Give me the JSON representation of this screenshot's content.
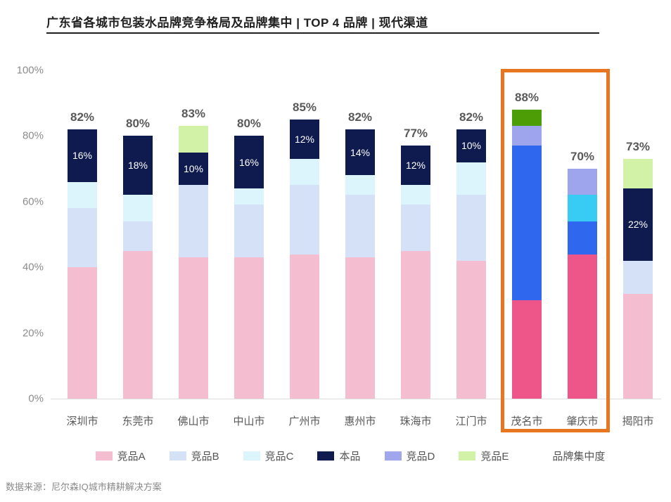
{
  "title": "广东省各城市包装水品牌竞争格局及品牌集中 | TOP 4 品牌 | 现代渠道",
  "source": "数据来源：尼尔森IQ城市精耕解决方案",
  "highlight_box": {
    "color": "#E8751F"
  },
  "legend": {
    "items": [
      {
        "label": "竞品A",
        "color": "#F5BDD0"
      },
      {
        "label": "竞品B",
        "color": "#D5E1F7"
      },
      {
        "label": "竞品C",
        "color": "#DCF4FB"
      },
      {
        "label": "本品",
        "color": "#0F1A4E"
      },
      {
        "label": "竞品D",
        "color": "#A0A7ED"
      },
      {
        "label": "竞品E",
        "color": "#D2F2A8"
      },
      {
        "label": "品牌集中度",
        "color": null
      }
    ]
  },
  "chart_data": {
    "type": "bar",
    "stacked": true,
    "title": "广东省各城市包装水品牌竞争格局及品牌集中 | TOP 4 品牌 | 现代渠道",
    "categories": [
      "深圳市",
      "东莞市",
      "佛山市",
      "中山市",
      "广州市",
      "惠州市",
      "珠海市",
      "江门市",
      "茂名市",
      "肇庆市",
      "揭阳市"
    ],
    "series": [
      {
        "name": "竞品A",
        "color": "#F5BDD0",
        "highlight_color": "#EE5589",
        "values": [
          40,
          45,
          43,
          43,
          44,
          43,
          45,
          42,
          30,
          44,
          32
        ]
      },
      {
        "name": "竞品B",
        "color": "#D5E1F7",
        "highlight_color": "#2F68EF",
        "values": [
          18,
          9,
          22,
          16,
          21,
          19,
          14,
          20,
          47,
          10,
          10
        ]
      },
      {
        "name": "竞品C",
        "color": "#DCF4FB",
        "highlight_color": "#38CCF5",
        "values": [
          8,
          8,
          0,
          5,
          8,
          6,
          6,
          10,
          0,
          8,
          0
        ]
      },
      {
        "name": "本品",
        "color": "#0F1A4E",
        "highlight_color": "#0F1A4E",
        "show_labels": true,
        "values": [
          16,
          18,
          10,
          16,
          12,
          14,
          12,
          10,
          0,
          0,
          22
        ]
      },
      {
        "name": "竞品D",
        "color": "#A0A7ED",
        "highlight_color": "#9EA5EC",
        "values": [
          0,
          0,
          0,
          0,
          0,
          0,
          0,
          0,
          6,
          8,
          0
        ]
      },
      {
        "name": "竞品E",
        "color": "#D2F2A8",
        "highlight_color": "#4D9E06",
        "values": [
          0,
          0,
          8,
          0,
          0,
          0,
          0,
          0,
          5,
          0,
          9
        ]
      }
    ],
    "totals": [
      82,
      80,
      83,
      80,
      85,
      82,
      77,
      82,
      88,
      70,
      73
    ],
    "total_label_suffix": "%",
    "highlighted_categories": [
      "茂名市",
      "肇庆市"
    ],
    "ylim": [
      0,
      100
    ],
    "yticks": [
      0,
      20,
      40,
      60,
      80,
      100
    ],
    "ytick_suffix": "%",
    "legend_position": "bottom",
    "grid": false
  }
}
